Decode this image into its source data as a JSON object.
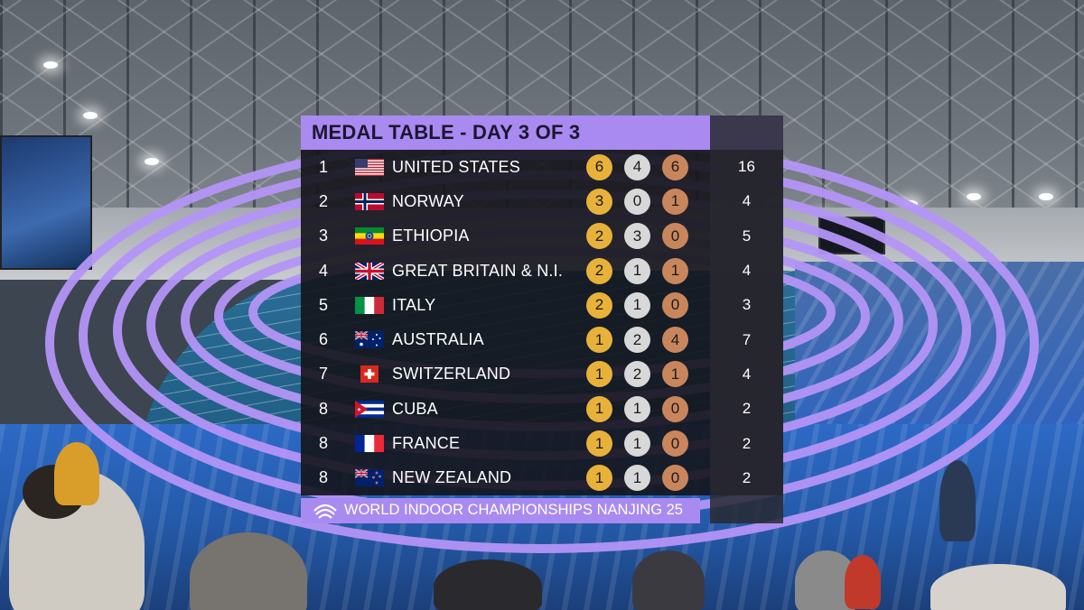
{
  "header": {
    "title": "MEDAL TABLE - DAY 3 OF 3"
  },
  "footer": {
    "event": "WORLD INDOOR CHAMPIONSHIPS NANJING 25",
    "logo_icon": "championship-logo-icon"
  },
  "colors": {
    "accent_purple": "#a98af0",
    "gold": "#e8b23a",
    "silver": "#d8d8d8",
    "bronze": "#c9865c",
    "panel": "#14141a"
  },
  "rows": [
    {
      "rank": "1",
      "country": "UNITED STATES",
      "flag": "flag-usa-icon",
      "gold": "6",
      "silver": "4",
      "bronze": "6",
      "total": "16"
    },
    {
      "rank": "2",
      "country": "NORWAY",
      "flag": "flag-norway-icon",
      "gold": "3",
      "silver": "0",
      "bronze": "1",
      "total": "4"
    },
    {
      "rank": "3",
      "country": "ETHIOPIA",
      "flag": "flag-ethiopia-icon",
      "gold": "2",
      "silver": "3",
      "bronze": "0",
      "total": "5"
    },
    {
      "rank": "4",
      "country": "GREAT BRITAIN & N.I.",
      "flag": "flag-great-britain-icon",
      "gold": "2",
      "silver": "1",
      "bronze": "1",
      "total": "4"
    },
    {
      "rank": "5",
      "country": "ITALY",
      "flag": "flag-italy-icon",
      "gold": "2",
      "silver": "1",
      "bronze": "0",
      "total": "3"
    },
    {
      "rank": "6",
      "country": "AUSTRALIA",
      "flag": "flag-australia-icon",
      "gold": "1",
      "silver": "2",
      "bronze": "4",
      "total": "7"
    },
    {
      "rank": "7",
      "country": "SWITZERLAND",
      "flag": "flag-switzerland-icon",
      "gold": "1",
      "silver": "2",
      "bronze": "1",
      "total": "4"
    },
    {
      "rank": "8",
      "country": "CUBA",
      "flag": "flag-cuba-icon",
      "gold": "1",
      "silver": "1",
      "bronze": "0",
      "total": "2"
    },
    {
      "rank": "8",
      "country": "FRANCE",
      "flag": "flag-france-icon",
      "gold": "1",
      "silver": "1",
      "bronze": "0",
      "total": "2"
    },
    {
      "rank": "8",
      "country": "NEW ZEALAND",
      "flag": "flag-new-zealand-icon",
      "gold": "1",
      "silver": "1",
      "bronze": "0",
      "total": "2"
    }
  ]
}
